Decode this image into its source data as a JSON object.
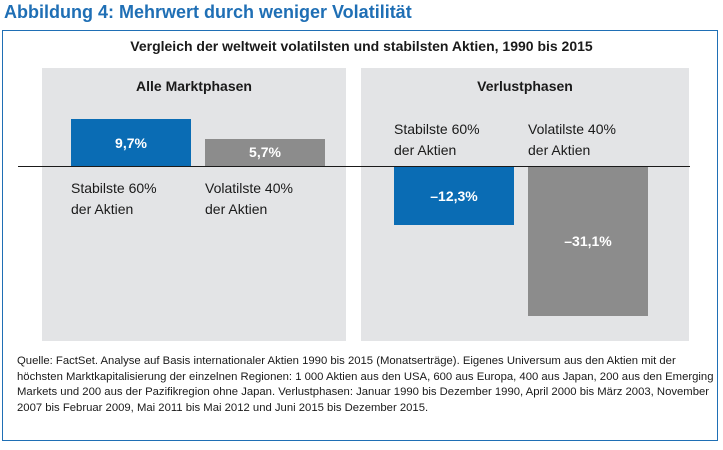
{
  "figure_title": "Abbildung 4: Mehrwert durch weniger Volatilität",
  "chart_data": {
    "type": "bar",
    "title": "Vergleich der weltweit volatilsten und stabilsten Aktien, 1990 bis 2015",
    "unit": "%",
    "panels": [
      {
        "title": "Alle Marktphasen",
        "categories": [
          "Stabilste 60% der Aktien",
          "Volatilste 40% der Aktien"
        ],
        "values": [
          9.7,
          5.7
        ],
        "value_labels": [
          "9,7%",
          "5,7%"
        ],
        "label_lines": [
          [
            "Stabilste 60%",
            "der Aktien"
          ],
          [
            "Volatilste 40%",
            "der Aktien"
          ]
        ]
      },
      {
        "title": "Verlustphasen",
        "categories": [
          "Stabilste 60% der Aktien",
          "Volatilste 40% der Aktien"
        ],
        "values": [
          -12.3,
          -31.1
        ],
        "value_labels": [
          "–12,3%",
          "–31,1%"
        ],
        "label_lines": [
          [
            "Stabilste 60%",
            "der Aktien"
          ],
          [
            "Volatilste 40%",
            "der Aktien"
          ]
        ]
      }
    ],
    "colors": [
      "#0a6cb4",
      "#8c8c8c"
    ],
    "grid": false
  },
  "source_note": "Quelle: FactSet. Analyse auf Basis internationaler Aktien 1990 bis 2015 (Monatserträge). Eigenes Universum aus den Aktien mit der höchsten Marktkapitalisierung der einzelnen Regionen: 1 000 Aktien aus den USA, 600 aus Europa, 400 aus Japan, 200 aus den Emerging Markets und 200 aus der Pazifikregion ohne Japan. Verlustphasen: Januar 1990 bis Dezember 1990, April 2000 bis März 2003, November 2007 bis Februar 2009, Mai 2011 bis Mai 2012 und Juni 2015 bis Dezember 2015."
}
